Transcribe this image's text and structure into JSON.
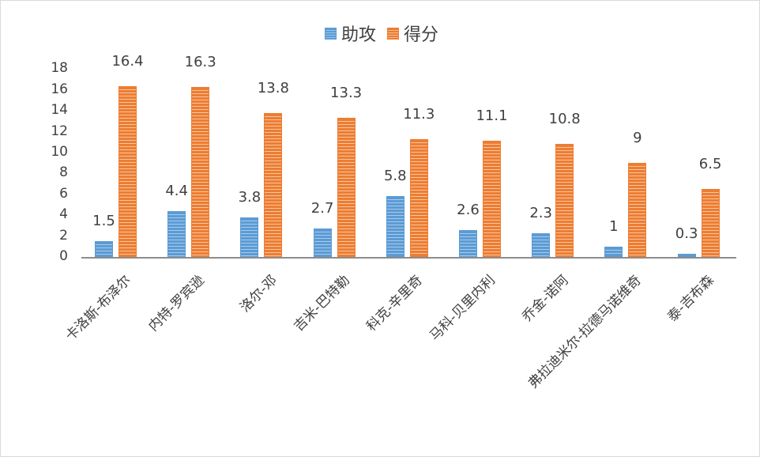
{
  "chart_data": {
    "type": "bar",
    "title": "",
    "xlabel": "",
    "ylabel": "",
    "ylim": [
      0,
      18
    ],
    "yticks": [
      "0",
      "2",
      "4",
      "6",
      "8",
      "10",
      "12",
      "14",
      "16",
      "18"
    ],
    "grid": false,
    "legend_position": "top",
    "categories": [
      "卡洛斯-布泽尔",
      "内特-罗宾逊",
      "洛尔-邓",
      "吉米-巴特勒",
      "科克-辛里奇",
      "马科-贝里内利",
      "乔金-诺阿",
      "弗拉迪米尔-拉德马诺维奇",
      "泰-吉布森"
    ],
    "series": [
      {
        "name": "助攻",
        "color": "#5b9bd5",
        "values": [
          1.5,
          4.4,
          3.8,
          2.7,
          5.8,
          2.6,
          2.3,
          1,
          0.3
        ],
        "labels": [
          "1.5",
          "4.4",
          "3.8",
          "2.7",
          "5.8",
          "2.6",
          "2.3",
          "1",
          "0.3"
        ]
      },
      {
        "name": "得分",
        "color": "#ed7d31",
        "values": [
          16.4,
          16.3,
          13.8,
          13.3,
          11.3,
          11.1,
          10.8,
          9,
          6.5
        ],
        "labels": [
          "16.4",
          "16.3",
          "13.8",
          "13.3",
          "11.3",
          "11.1",
          "10.8",
          "9",
          "6.5"
        ]
      }
    ]
  },
  "legend": {
    "items": [
      {
        "label": "助攻",
        "icon": "blue-swatch"
      },
      {
        "label": "得分",
        "icon": "orange-swatch"
      }
    ]
  }
}
